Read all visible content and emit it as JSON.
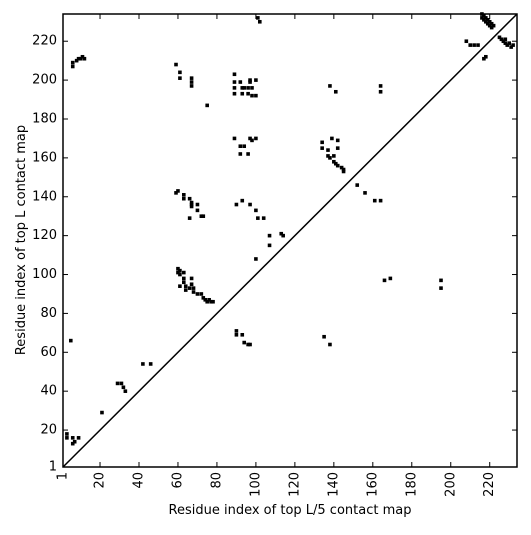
{
  "chart_data": {
    "type": "scatter",
    "xlabel": "Residue index of top L/5 contact map",
    "ylabel": "Residue index of top L contact map",
    "color": "#000000",
    "xlim": [
      1,
      234
    ],
    "ylim": [
      1,
      234
    ],
    "xticks": [
      1,
      20,
      40,
      60,
      80,
      100,
      120,
      140,
      160,
      180,
      200,
      220
    ],
    "yticks": [
      1,
      20,
      40,
      60,
      80,
      100,
      120,
      140,
      160,
      180,
      200,
      220
    ],
    "x": [
      6,
      6,
      8,
      9,
      10,
      11,
      12,
      59,
      61,
      61,
      67,
      67,
      67,
      75,
      89,
      89,
      89,
      89,
      92,
      93,
      93,
      94,
      96,
      96,
      97,
      97,
      98,
      98,
      100,
      100,
      101,
      102,
      89,
      92,
      92,
      94,
      96,
      97,
      98,
      100,
      59,
      60,
      63,
      63,
      66,
      67,
      67,
      67,
      70,
      70,
      72,
      73,
      66,
      90,
      93,
      97,
      100,
      101,
      104,
      107,
      107,
      113,
      114,
      60,
      60,
      61,
      61,
      63,
      63,
      63,
      64,
      61,
      64,
      66,
      67,
      67,
      68,
      68,
      70,
      72,
      73,
      74,
      75,
      76,
      77,
      78,
      100,
      90,
      90,
      93,
      94,
      96,
      97,
      5,
      42,
      46,
      29,
      31,
      32,
      33,
      21,
      3,
      3,
      6,
      6,
      7,
      9,
      135,
      138,
      138,
      141,
      134,
      134,
      137,
      137,
      138,
      139,
      140,
      140,
      141,
      142,
      142,
      142,
      144,
      145,
      145,
      152,
      156,
      161,
      164,
      164,
      164,
      166,
      169,
      195,
      195,
      208,
      210,
      212,
      214,
      218,
      217,
      216,
      216,
      217,
      217,
      218,
      218,
      219,
      219,
      220,
      220,
      221,
      221,
      222,
      225,
      226,
      227,
      228,
      228,
      229,
      230,
      231,
      232
    ],
    "values": [
      207,
      209,
      210,
      211,
      211,
      212,
      211,
      208,
      204,
      201,
      201,
      199,
      197,
      187,
      203,
      199,
      196,
      193,
      199,
      196,
      193,
      196,
      196,
      193,
      199,
      200,
      196,
      192,
      200,
      192,
      232,
      230,
      170,
      166,
      162,
      166,
      162,
      170,
      169,
      170,
      142,
      143,
      141,
      139,
      139,
      136,
      135,
      137,
      136,
      133,
      130,
      130,
      129,
      136,
      138,
      136,
      133,
      129,
      129,
      120,
      115,
      121,
      120,
      103,
      101,
      100,
      102,
      101,
      98,
      96,
      94,
      94,
      92,
      93,
      98,
      95,
      91,
      93,
      90,
      90,
      88,
      87,
      86,
      87,
      86,
      86,
      108,
      71,
      69,
      69,
      65,
      64,
      64,
      66,
      54,
      54,
      44,
      44,
      42,
      40,
      29,
      18,
      16,
      16,
      13,
      14,
      16,
      68,
      64,
      197,
      194,
      168,
      165,
      164,
      161,
      160,
      170,
      158,
      161,
      157,
      156,
      165,
      169,
      155,
      153,
      154,
      146,
      142,
      138,
      138,
      197,
      194,
      97,
      98,
      97,
      93,
      220,
      218,
      218,
      218,
      212,
      211,
      234,
      232,
      233,
      231,
      230,
      232,
      229,
      231,
      228,
      230,
      227,
      229,
      228,
      222,
      221,
      220,
      221,
      219,
      218,
      219,
      217,
      218
    ]
  }
}
